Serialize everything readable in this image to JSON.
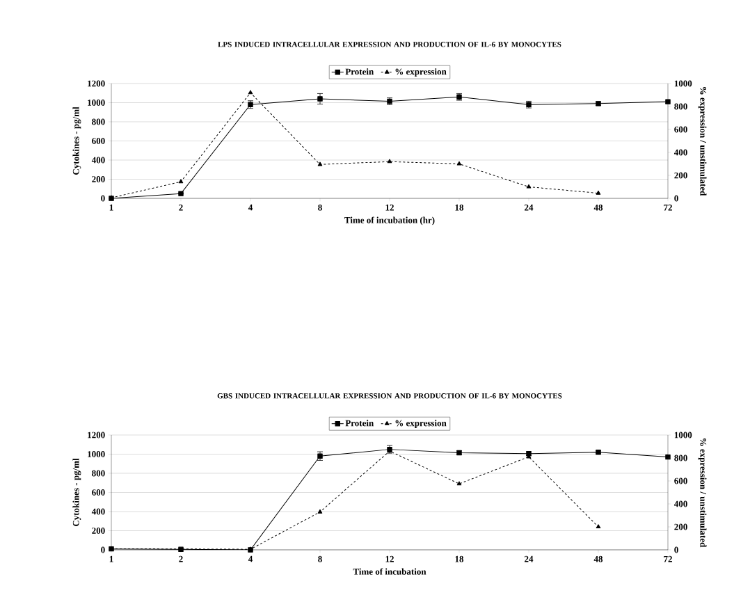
{
  "chart_data": [
    {
      "type": "line",
      "title": "LPS INDUCED INTRACELLULAR EXPRESSION AND PRODUCTION OF IL-6 BY MONOCYTES",
      "xlabel": "Time of incubation (hr)",
      "ylabel": "Cytokines - pg/ml",
      "y2label": "% expression / unstimulated",
      "categories": [
        "1",
        "2",
        "4",
        "8",
        "12",
        "18",
        "24",
        "48",
        "72"
      ],
      "series": [
        {
          "name": "Protein",
          "color": "#000000",
          "marker": "square",
          "line_style": "solid",
          "values": [
            0,
            50,
            980,
            1040,
            1015,
            1060,
            980,
            990,
            1010
          ],
          "errors": [
            null,
            null,
            40,
            55,
            35,
            35,
            35,
            20,
            15
          ]
        },
        {
          "name": "% expression",
          "color": "#000000",
          "marker": "triangle",
          "line_style": "dashed",
          "axis": "y2",
          "values": [
            5,
            145,
            920,
            295,
            320,
            300,
            100,
            45,
            null
          ]
        }
      ],
      "ylim": [
        0,
        1200
      ],
      "yticks": [
        0,
        200,
        400,
        600,
        800,
        1000,
        1200
      ],
      "y2lim": [
        0,
        1000
      ],
      "y2ticks": [
        0,
        200,
        400,
        600,
        800,
        1000
      ],
      "grid": "y",
      "legend": "top"
    },
    {
      "type": "line",
      "title": "GBS INDUCED INTRACELLULAR EXPRESSION AND PRODUCTION OF IL-6 BY MONOCYTES",
      "xlabel": "Time of incubation",
      "ylabel": "Cytokines - pg/ml",
      "y2label": "% expression / unstimulated",
      "categories": [
        "1",
        "2",
        "4",
        "8",
        "12",
        "18",
        "24",
        "48",
        "72"
      ],
      "series": [
        {
          "name": "Protein",
          "color": "#000000",
          "marker": "square",
          "line_style": "solid",
          "values": [
            10,
            5,
            0,
            980,
            1050,
            1015,
            1005,
            1020,
            970
          ],
          "errors": [
            null,
            null,
            null,
            45,
            40,
            20,
            20,
            15,
            null
          ]
        },
        {
          "name": "% expression",
          "color": "#000000",
          "marker": "triangle",
          "line_style": "dashed",
          "axis": "y2",
          "values": [
            10,
            null,
            5,
            330,
            860,
            575,
            810,
            200,
            null
          ]
        }
      ],
      "ylim": [
        0,
        1200
      ],
      "yticks": [
        0,
        200,
        400,
        600,
        800,
        1000,
        1200
      ],
      "y2lim": [
        0,
        1000
      ],
      "y2ticks": [
        0,
        200,
        400,
        600,
        800,
        1000
      ],
      "grid": "y",
      "legend": "top"
    }
  ]
}
